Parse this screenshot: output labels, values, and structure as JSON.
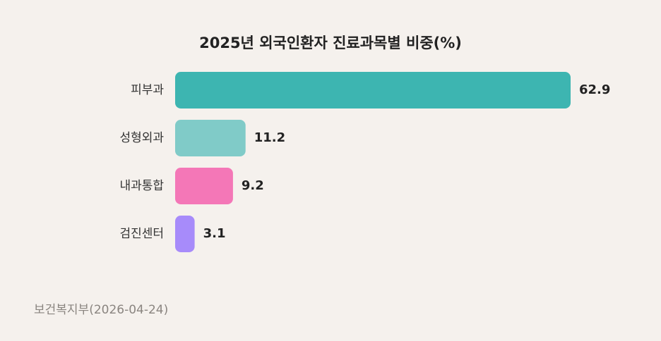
{
  "chart_data": {
    "type": "bar",
    "orientation": "horizontal",
    "title": "2025년 외국인환자 진료과목별 비중(%)",
    "categories": [
      "피부과",
      "성형외과",
      "내과통합",
      "검진센터"
    ],
    "values": [
      62.9,
      11.2,
      9.2,
      3.1
    ],
    "colors": [
      "#3db5b1",
      "#80cbc8",
      "#f477b7",
      "#a78bfa"
    ],
    "source": "보건복지부(2026-04-24)"
  }
}
